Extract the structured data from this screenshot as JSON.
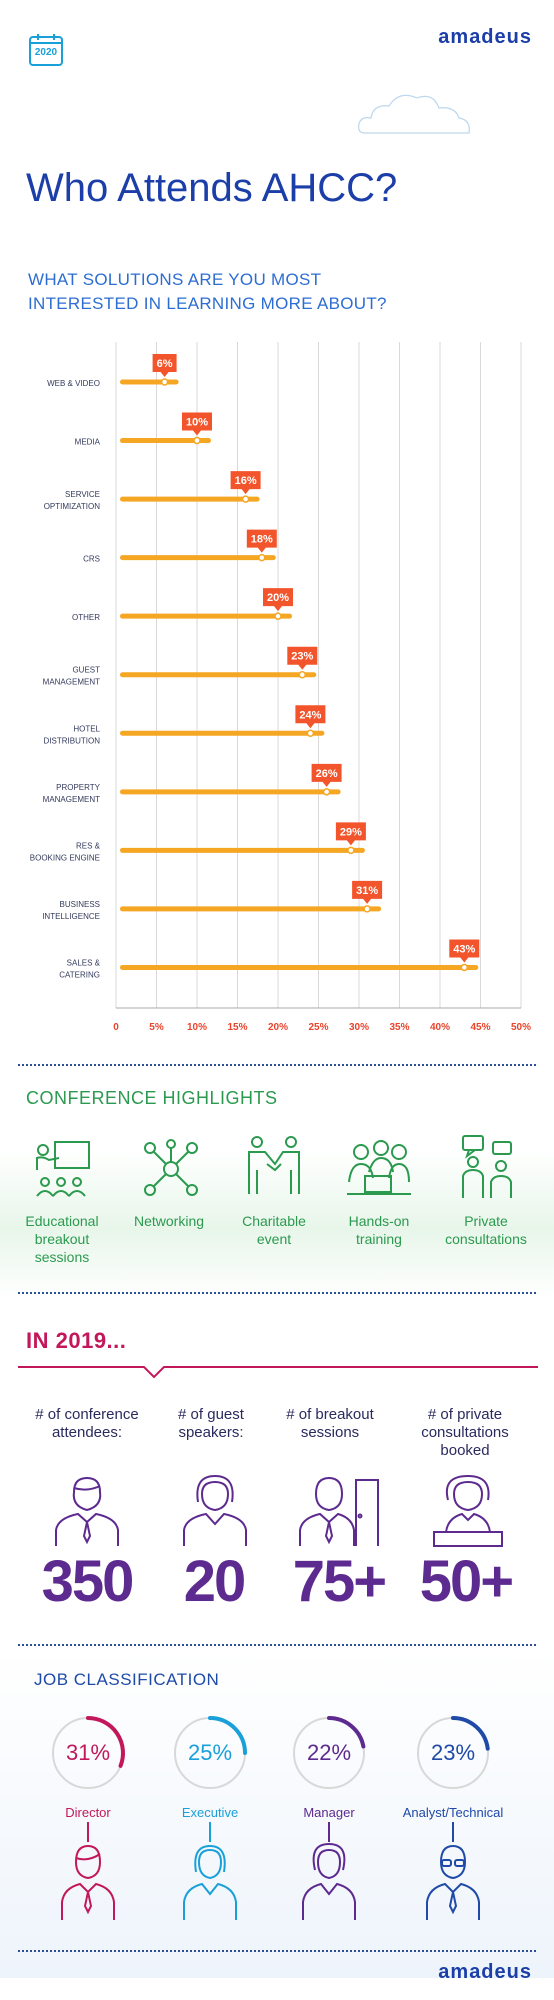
{
  "header": {
    "calendar_year": "2020",
    "brand": "amadeus",
    "title": "Who Attends AHCC?",
    "question": [
      "WHAT SOLUTIONS ARE YOU MOST",
      "INTERESTED IN LEARNING MORE ABOUT?"
    ]
  },
  "chart_data": {
    "type": "bar",
    "orientation": "horizontal",
    "categories": [
      [
        "WEB & VIDEO"
      ],
      [
        "MEDIA"
      ],
      [
        "SERVICE",
        "OPTIMIZATION"
      ],
      [
        "CRS"
      ],
      [
        "OTHER"
      ],
      [
        "GUEST",
        "MANAGEMENT"
      ],
      [
        "HOTEL",
        "DISTRIBUTION"
      ],
      [
        "PROPERTY",
        "MANAGEMENT"
      ],
      [
        "RES &",
        "BOOKING ENGINE"
      ],
      [
        "BUSINESS",
        "INTELLIGENCE"
      ],
      [
        "SALES &",
        "CATERING"
      ]
    ],
    "values": [
      6,
      10,
      16,
      18,
      20,
      23,
      24,
      26,
      29,
      31,
      43
    ],
    "data_labels": [
      "6%",
      "10%",
      "16%",
      "18%",
      "20%",
      "23%",
      "24%",
      "26%",
      "29%",
      "31%",
      "43%"
    ],
    "x_ticks": [
      "0",
      "5%",
      "10%",
      "15%",
      "20%",
      "25%",
      "30%",
      "35%",
      "40%",
      "45%",
      "50%"
    ],
    "xlim": [
      0,
      50
    ],
    "grid": true,
    "colors": {
      "bar": "#f5a623",
      "label_bg": "#f2552c",
      "tick": "#e8442c",
      "grid": "#d9d9d9"
    }
  },
  "highlights": {
    "title": "CONFERENCE HIGHLIGHTS",
    "items": [
      {
        "icon": "presentation-icon",
        "lines": [
          "Educational",
          "breakout",
          "sessions"
        ]
      },
      {
        "icon": "network-icon",
        "lines": [
          "Networking"
        ]
      },
      {
        "icon": "handshake-icon",
        "lines": [
          "Charitable",
          "event"
        ]
      },
      {
        "icon": "training-icon",
        "lines": [
          "Hands-on",
          "training"
        ]
      },
      {
        "icon": "consultation-icon",
        "lines": [
          "Private",
          "consultations"
        ]
      }
    ]
  },
  "year_stats": {
    "title": "IN 2019...",
    "items": [
      {
        "lines": [
          "# of conference",
          "attendees:"
        ],
        "value": "350",
        "icon": "attendee-icon"
      },
      {
        "lines": [
          "# of guest",
          "speakers:"
        ],
        "value": "20",
        "icon": "speaker-icon"
      },
      {
        "lines": [
          "# of breakout",
          "sessions"
        ],
        "value": "75+",
        "icon": "breakout-icon"
      },
      {
        "lines": [
          "# of private",
          "consultations",
          "booked"
        ],
        "value": "50+",
        "icon": "consultant-icon"
      }
    ]
  },
  "jobs": {
    "title": "JOB CLASSIFICATION",
    "items": [
      {
        "pct": 31,
        "pct_label": "31%",
        "label": "Director",
        "color": "#c2185b",
        "icon": "director-icon"
      },
      {
        "pct": 25,
        "pct_label": "25%",
        "label": "Executive",
        "color": "#1aa0d8",
        "icon": "executive-icon"
      },
      {
        "pct": 22,
        "pct_label": "22%",
        "label": "Manager",
        "color": "#5d2a8f",
        "icon": "manager-icon"
      },
      {
        "pct": 23,
        "pct_label": "23%",
        "label": "Analyst/Technical",
        "color": "#1f4aa8",
        "icon": "analyst-icon"
      }
    ]
  },
  "footer": {
    "brand": "amadeus"
  }
}
